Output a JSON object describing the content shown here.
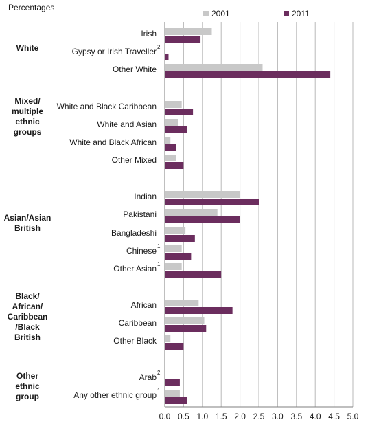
{
  "unit_label": "Percentages",
  "chart_data": {
    "type": "bar",
    "orientation": "horizontal",
    "xlim": [
      0,
      5
    ],
    "xticks": [
      "0.0",
      "0.5",
      "1.0",
      "1.5",
      "2.0",
      "2.5",
      "3.0",
      "3.5",
      "4.0",
      "4.5",
      "5.0"
    ],
    "grid": true,
    "legend_position": "top",
    "series": [
      {
        "name": "2001",
        "color": "#c8c8c8"
      },
      {
        "name": "2011",
        "color": "#6b2d5e"
      }
    ],
    "groups": [
      {
        "label": "White",
        "categories": [
          {
            "label": "Irish",
            "v2001": 1.25,
            "v2011": 0.95
          },
          {
            "label": "Gypsy or Irish Traveller",
            "footnote": "2",
            "v2001": null,
            "v2011": 0.1
          },
          {
            "label": "Other White",
            "v2001": 2.6,
            "v2011": 4.4
          }
        ]
      },
      {
        "label": "Mixed/ multiple ethnic groups",
        "categories": [
          {
            "label": "White and Black Caribbean",
            "v2001": 0.45,
            "v2011": 0.75
          },
          {
            "label": "White and Asian",
            "v2001": 0.35,
            "v2011": 0.6
          },
          {
            "label": "White and Black African",
            "v2001": 0.15,
            "v2011": 0.3
          },
          {
            "label": "Other Mixed",
            "v2001": 0.3,
            "v2011": 0.5
          }
        ]
      },
      {
        "label": "Asian/Asian British",
        "categories": [
          {
            "label": "Indian",
            "v2001": 2.0,
            "v2011": 2.5
          },
          {
            "label": "Pakistani",
            "v2001": 1.4,
            "v2011": 2.0
          },
          {
            "label": "Bangladeshi",
            "v2001": 0.55,
            "v2011": 0.8
          },
          {
            "label": "Chinese",
            "footnote": "1",
            "v2001": 0.45,
            "v2011": 0.7
          },
          {
            "label": "Other Asian",
            "footnote": "1",
            "v2001": 0.45,
            "v2011": 1.5
          }
        ]
      },
      {
        "label": "Black/ African/ Caribbean /Black British",
        "categories": [
          {
            "label": "African",
            "v2001": 0.9,
            "v2011": 1.8
          },
          {
            "label": "Caribbean",
            "v2001": 1.05,
            "v2011": 1.1
          },
          {
            "label": "Other Black",
            "v2001": 0.15,
            "v2011": 0.5
          }
        ]
      },
      {
        "label": "Other ethnic group",
        "categories": [
          {
            "label": "Arab",
            "footnote": "2",
            "v2001": null,
            "v2011": 0.4
          },
          {
            "label": "Any other ethnic group",
            "footnote": "1",
            "v2001": 0.4,
            "v2011": 0.6
          }
        ]
      }
    ]
  }
}
